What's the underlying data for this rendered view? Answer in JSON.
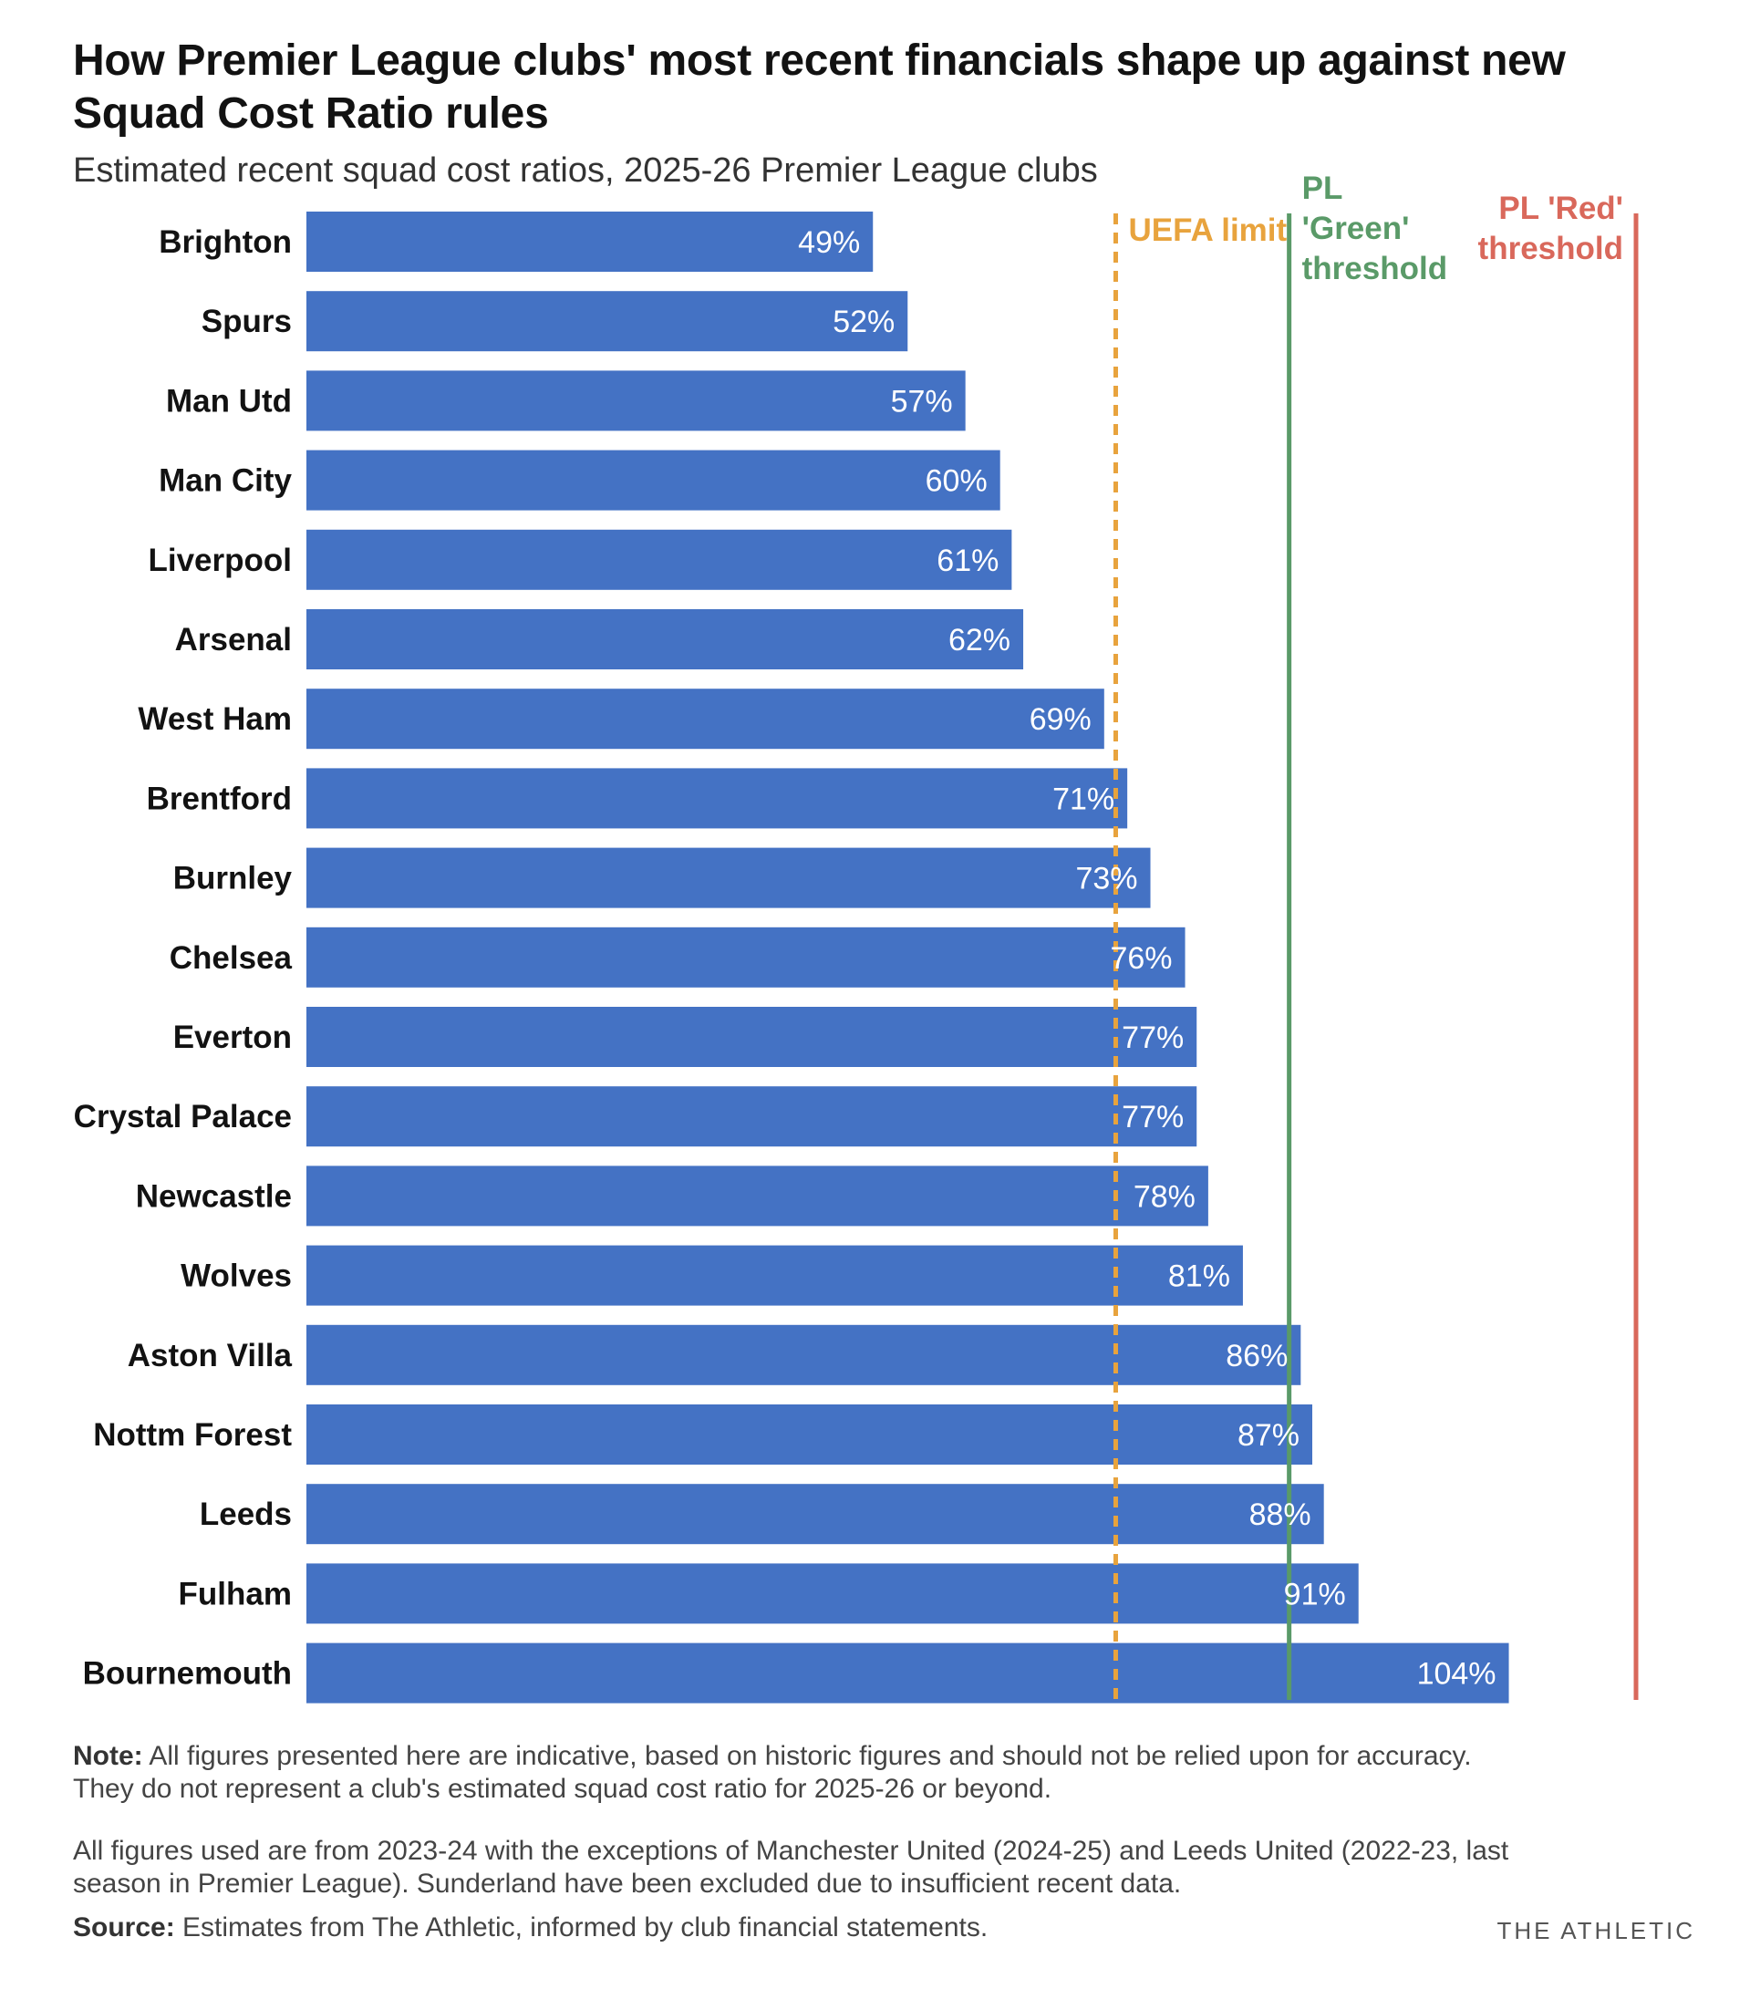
{
  "title": "How Premier League clubs' most recent financials shape up against new Squad Cost Ratio rules",
  "subtitle": "Estimated recent squad cost ratios, 2025-26 Premier League clubs",
  "chart_data": {
    "type": "bar",
    "orientation": "horizontal",
    "categories": [
      "Brighton",
      "Spurs",
      "Man Utd",
      "Man City",
      "Liverpool",
      "Arsenal",
      "West Ham",
      "Brentford",
      "Burnley",
      "Chelsea",
      "Everton",
      "Crystal Palace",
      "Newcastle",
      "Wolves",
      "Aston Villa",
      "Nottm Forest",
      "Leeds",
      "Fulham",
      "Bournemouth"
    ],
    "values": [
      49,
      52,
      57,
      60,
      61,
      62,
      69,
      71,
      73,
      76,
      77,
      77,
      78,
      81,
      86,
      87,
      88,
      91,
      104
    ],
    "value_labels": [
      "49%",
      "52%",
      "57%",
      "60%",
      "61%",
      "62%",
      "69%",
      "71%",
      "73%",
      "76%",
      "77%",
      "77%",
      "78%",
      "81%",
      "86%",
      "87%",
      "88%",
      "91%",
      "104%"
    ],
    "xlim": [
      0,
      115
    ],
    "grid": false,
    "bar_color": "#4472c4",
    "reference_lines": [
      {
        "label": [
          "UEFA limit"
        ],
        "value": 70,
        "style": "dashed",
        "color": "#e8a33d"
      },
      {
        "label": [
          "PL",
          "'Green'",
          "threshold"
        ],
        "value": 85,
        "style": "solid",
        "color": "#5a9a68"
      },
      {
        "label": [
          "PL 'Red'",
          "threshold"
        ],
        "value": 115,
        "style": "solid",
        "color": "#d9685b"
      }
    ]
  },
  "note": {
    "prefix": "Note:",
    "text": " All figures presented here are indicative, based on historic figures and should not be relied upon for accuracy. They do not represent a club's estimated squad cost ratio for 2025-26 or beyond."
  },
  "exceptions": "All figures used are from 2023-24 with the exceptions of Manchester United (2024-25) and Leeds United (2022-23, last season in Premier League). Sunderland have been excluded due to insufficient recent data.",
  "source": {
    "prefix": "Source:",
    "text": " Estimates from The Athletic, informed by club financial statements."
  },
  "brand": "THE ATHLETIC"
}
